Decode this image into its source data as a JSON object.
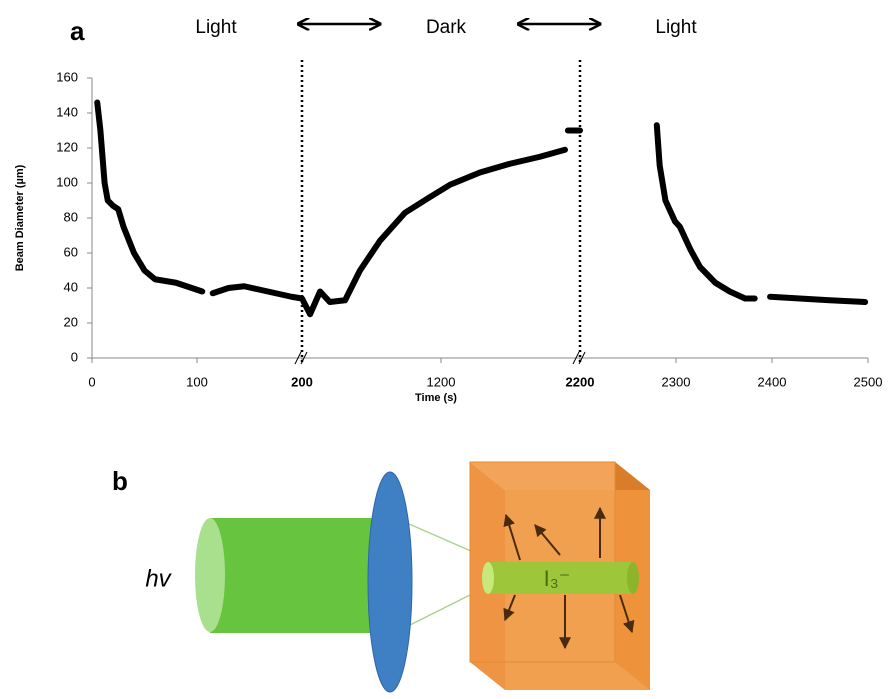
{
  "chart_data": {
    "type": "line",
    "panel_label": "a",
    "annotations": [
      "Light",
      "Dark",
      "Light"
    ],
    "xlabel": "Time (s)",
    "ylabel": "Beam Diameter (µm)",
    "x_segments": [
      [
        0,
        200
      ],
      [
        200,
        2200
      ],
      [
        2200,
        2500
      ]
    ],
    "xticks": [
      0,
      100,
      200,
      1200,
      2200,
      2300,
      2400,
      2500
    ],
    "ylim": [
      0,
      160
    ],
    "yticks": [
      0,
      20,
      40,
      60,
      80,
      100,
      120,
      140,
      160
    ],
    "series": [
      {
        "color": "#000000",
        "x": [
          5,
          8,
          10,
          12,
          15,
          20,
          25,
          30,
          40,
          50,
          60,
          70,
          80,
          90,
          100,
          105,
          null,
          115,
          130,
          145,
          160,
          175,
          190,
          200,
          258,
          330,
          400,
          510,
          617,
          761,
          941,
          1121,
          1265,
          1480,
          1696,
          1912,
          2092,
          null,
          2113,
          2150,
          2200,
          null,
          2280,
          2283,
          2289,
          2299,
          2304,
          2315,
          2325,
          2341,
          2356,
          2372,
          2382,
          null,
          2398,
          2429,
          2460,
          2497
        ],
        "values": [
          146,
          130,
          115,
          100,
          90,
          87,
          85,
          75,
          60,
          50,
          45,
          44,
          43,
          41,
          39,
          38,
          null,
          37,
          40,
          41,
          39,
          37,
          35,
          34,
          25,
          38,
          32,
          33,
          50,
          67,
          83,
          92,
          99,
          106,
          111,
          115,
          119,
          null,
          130,
          130,
          130,
          null,
          133,
          110,
          90,
          78,
          75,
          62,
          52,
          43,
          38,
          34,
          34,
          null,
          35,
          34,
          33,
          32
        ]
      }
    ]
  },
  "diagram": {
    "panel_label": "b",
    "light_label": "hv",
    "ion_label": "I₃⁻"
  }
}
